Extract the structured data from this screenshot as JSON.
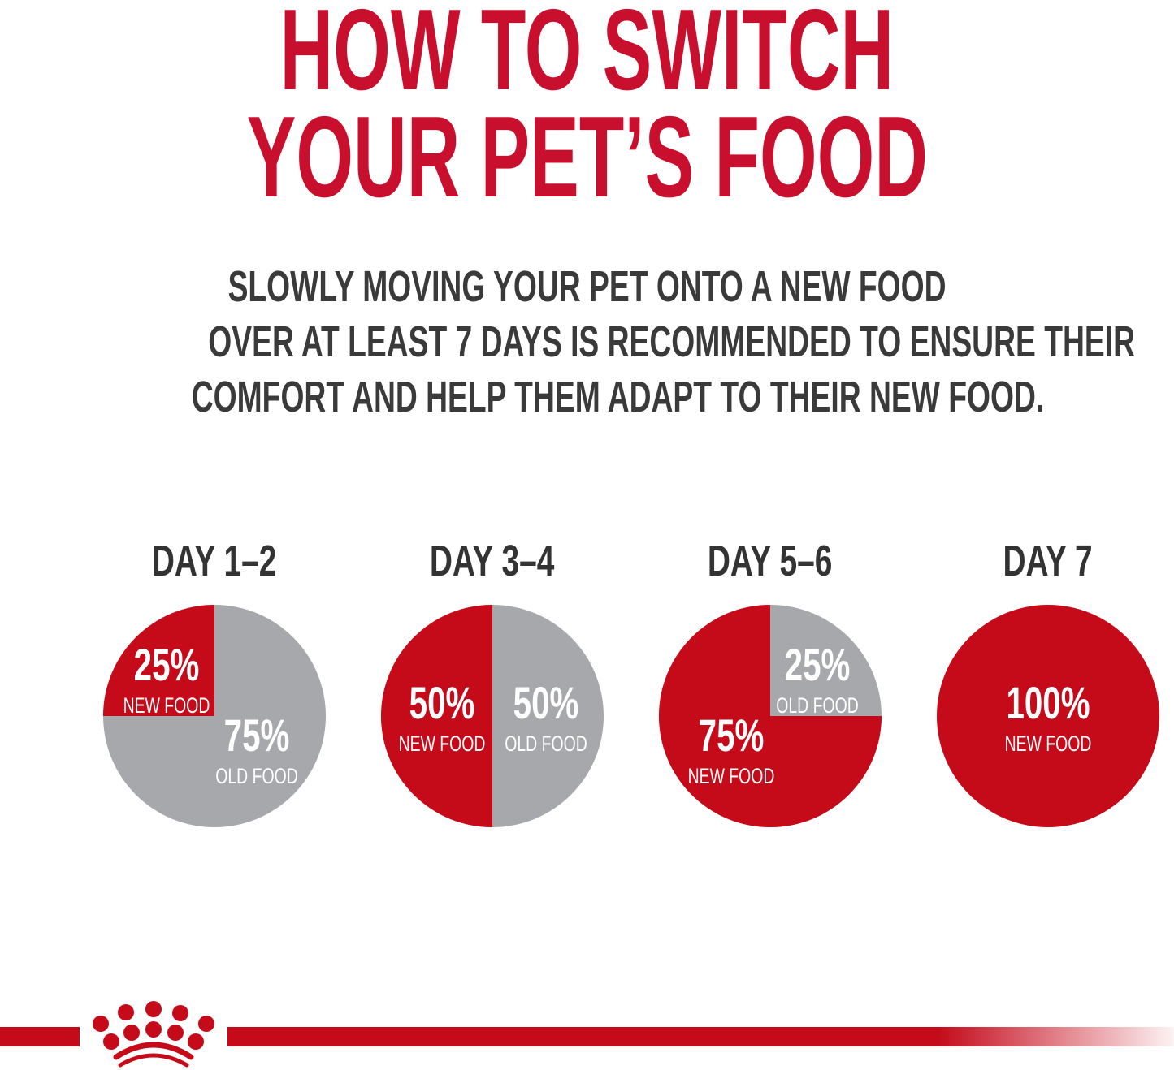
{
  "title_lines": [
    "HOW TO SWITCH",
    "YOUR PET’S FOOD"
  ],
  "subtitle_lines": [
    "SLOWLY MOVING YOUR PET ONTO A NEW FOOD",
    "OVER AT LEAST 7 DAYS IS RECOMMENDED TO ENSURE THEIR",
    "COMFORT AND HELP THEM ADAPT TO THEIR NEW FOOD."
  ],
  "colors": {
    "title": "#c8102e",
    "new_food": "#c50a1a",
    "old_food": "#a7a8ab",
    "text": "#3a3a3a"
  },
  "logo": {
    "icon": "royal-canin-crown-icon"
  },
  "chart_data": {
    "type": "pie",
    "charts": [
      {
        "title": "DAY 1–2",
        "slices": [
          {
            "label": "NEW FOOD",
            "value": 25,
            "text": "25%"
          },
          {
            "label": "OLD FOOD",
            "value": 75,
            "text": "75%"
          }
        ]
      },
      {
        "title": "DAY 3–4",
        "slices": [
          {
            "label": "NEW FOOD",
            "value": 50,
            "text": "50%"
          },
          {
            "label": "OLD FOOD",
            "value": 50,
            "text": "50%"
          }
        ]
      },
      {
        "title": "DAY 5–6",
        "slices": [
          {
            "label": "NEW FOOD",
            "value": 75,
            "text": "75%"
          },
          {
            "label": "OLD FOOD",
            "value": 25,
            "text": "25%"
          }
        ]
      },
      {
        "title": "DAY 7",
        "slices": [
          {
            "label": "NEW FOOD",
            "value": 100,
            "text": "100%"
          }
        ]
      }
    ]
  }
}
